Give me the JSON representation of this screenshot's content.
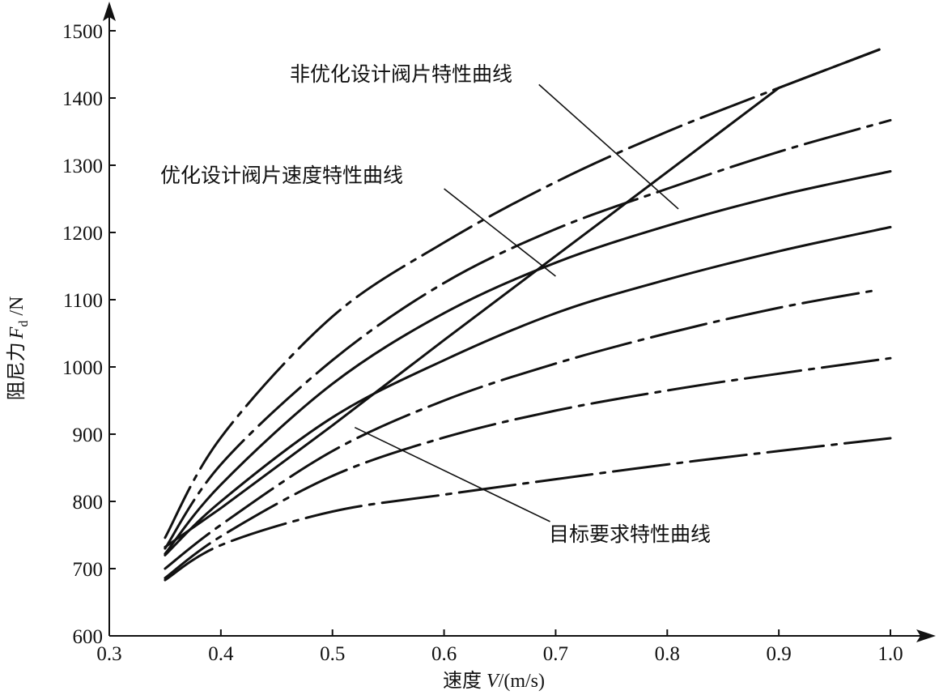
{
  "chart_data": {
    "type": "line",
    "title": "",
    "xlabel_text": "速度",
    "xlabel_var": "V",
    "xlabel_unit": "/(m/s)",
    "ylabel_text": "阻尼力",
    "ylabel_var": "F",
    "ylabel_sub": "d",
    "ylabel_unit": " /N",
    "xlim": [
      0.3,
      1.0
    ],
    "ylim": [
      600,
      1500
    ],
    "xticks": [
      0.3,
      0.4,
      0.5,
      0.6,
      0.7,
      0.8,
      0.9,
      1.0
    ],
    "xtick_labels": [
      "0.3",
      "0.4",
      "0.5",
      "0.6",
      "0.7",
      "0.8",
      "0.9",
      "1.0"
    ],
    "yticks": [
      600,
      700,
      800,
      900,
      1000,
      1100,
      1200,
      1300,
      1400,
      1500
    ],
    "ytick_labels": [
      "600",
      "700",
      "800",
      "900",
      "1000",
      "1100",
      "1200",
      "1300",
      "1400",
      "1500"
    ],
    "grid": false,
    "series": [
      {
        "id": "target",
        "style": "solid",
        "x": [
          0.35,
          0.4,
          0.5,
          0.6,
          0.7,
          0.8,
          0.9,
          0.99
        ],
        "y": [
          732,
          790,
          913,
          1040,
          1165,
          1290,
          1415,
          1472
        ]
      },
      {
        "id": "non-optimized",
        "style": "dashdot",
        "x": [
          0.35,
          0.4,
          0.5,
          0.6,
          0.7,
          0.8,
          0.9,
          0.99
        ],
        "y": [
          746,
          895,
          1075,
          1185,
          1275,
          1350,
          1415,
          1472
        ]
      },
      {
        "id": "curve-3",
        "style": "dashdot",
        "x": [
          0.35,
          0.4,
          0.5,
          0.6,
          0.7,
          0.8,
          0.9,
          1.0
        ],
        "y": [
          730,
          855,
          1010,
          1125,
          1205,
          1265,
          1320,
          1367
        ]
      },
      {
        "id": "optimized",
        "style": "solid",
        "x": [
          0.35,
          0.4,
          0.5,
          0.6,
          0.7,
          0.8,
          0.9,
          1.0
        ],
        "y": [
          722,
          825,
          975,
          1080,
          1155,
          1210,
          1255,
          1291
        ]
      },
      {
        "id": "curve-5",
        "style": "solid",
        "x": [
          0.35,
          0.4,
          0.5,
          0.6,
          0.7,
          0.8,
          0.9,
          1.0
        ],
        "y": [
          720,
          800,
          925,
          1010,
          1080,
          1130,
          1172,
          1208
        ]
      },
      {
        "id": "curve-6",
        "style": "dashdot",
        "x": [
          0.35,
          0.4,
          0.5,
          0.6,
          0.7,
          0.8,
          0.9,
          0.99
        ],
        "y": [
          700,
          765,
          875,
          950,
          1005,
          1050,
          1088,
          1115
        ]
      },
      {
        "id": "curve-7",
        "style": "dashdot",
        "x": [
          0.35,
          0.4,
          0.5,
          0.6,
          0.7,
          0.8,
          0.9,
          1.0
        ],
        "y": [
          686,
          748,
          838,
          895,
          935,
          965,
          990,
          1013
        ]
      },
      {
        "id": "curve-8",
        "style": "dashdot",
        "x": [
          0.35,
          0.4,
          0.5,
          0.6,
          0.7,
          0.8,
          0.9,
          1.0
        ],
        "y": [
          683,
          735,
          785,
          810,
          833,
          855,
          875,
          894
        ]
      }
    ],
    "annotations": [
      {
        "text": "非优化设计阀片特性曲线",
        "text_x": 0.6,
        "text_y": 1465,
        "leader_from": [
          0.685,
          1420
        ],
        "leader_to": [
          0.81,
          1235
        ]
      },
      {
        "text": "优化设计阀片速度特性曲线",
        "text_x": 0.47,
        "text_y": 1300,
        "leader_from": [
          0.6,
          1265
        ],
        "leader_to": [
          0.7,
          1135
        ]
      },
      {
        "text": "目标要求特性曲线",
        "text_x": 0.84,
        "text_y": 735,
        "leader_from": [
          0.52,
          910
        ],
        "leader_to": [
          0.695,
          770
        ]
      }
    ]
  }
}
